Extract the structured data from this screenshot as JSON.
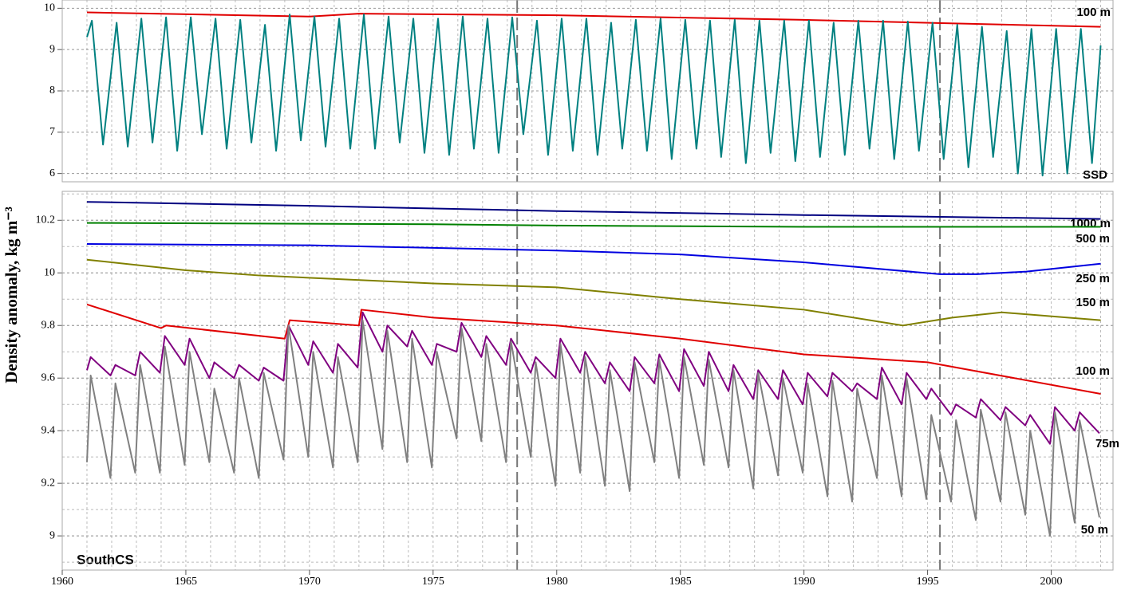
{
  "chart_data": [
    {
      "type": "line",
      "xlim": [
        1960,
        2002.5
      ],
      "ylim": [
        5.8,
        10.2
      ],
      "yticks": [
        6,
        7,
        8,
        9,
        10
      ],
      "xticks": [
        1960,
        1965,
        1970,
        1975,
        1980,
        1985,
        1990,
        1995,
        2000
      ],
      "xminor": [
        1960,
        1961,
        1962,
        1963,
        1964,
        1965,
        1966,
        1967,
        1968,
        1969,
        1970,
        1971,
        1972,
        1973,
        1974,
        1975,
        1976,
        1977,
        1978,
        1979,
        1980,
        1981,
        1982,
        1983,
        1984,
        1985,
        1986,
        1987,
        1988,
        1989,
        1990,
        1991,
        1992,
        1993,
        1994,
        1995,
        1996,
        1997,
        1998,
        1999,
        2000,
        2001,
        2002
      ],
      "vlines": [
        1978.4,
        1995.5
      ],
      "grid": true,
      "series": [
        {
          "name": "100 m",
          "color": "#e00000",
          "x": [
            1961,
            1970,
            1972,
            1980,
            1990,
            2002
          ],
          "values": [
            9.9,
            9.8,
            9.87,
            9.83,
            9.72,
            9.55
          ]
        },
        {
          "name": "SSD",
          "color": "#008080",
          "x": [
            1961,
            1961.2,
            1961.65,
            1962.2,
            1962.65,
            1963.2,
            1963.65,
            1964.2,
            1964.65,
            1965.2,
            1965.65,
            1966.2,
            1966.65,
            1967.2,
            1967.65,
            1968.2,
            1968.65,
            1969.2,
            1969.65,
            1970.2,
            1970.65,
            1971.2,
            1971.65,
            1972.2,
            1972.65,
            1973.2,
            1973.65,
            1974.2,
            1974.65,
            1975.2,
            1975.65,
            1976.2,
            1976.65,
            1977.2,
            1977.65,
            1978.2,
            1978.65,
            1979.2,
            1979.65,
            1980.2,
            1980.65,
            1981.2,
            1981.65,
            1982.2,
            1982.65,
            1983.2,
            1983.65,
            1984.2,
            1984.65,
            1985.2,
            1985.65,
            1986.2,
            1986.65,
            1987.2,
            1987.65,
            1988.2,
            1988.65,
            1989.2,
            1989.65,
            1990.2,
            1990.65,
            1991.2,
            1991.65,
            1992.2,
            1992.65,
            1993.2,
            1993.65,
            1994.2,
            1994.65,
            1995.2,
            1995.65,
            1996.2,
            1996.65,
            1997.2,
            1997.65,
            1998.2,
            1998.65,
            1999.2,
            1999.65,
            2000.2,
            2000.65,
            2001.2,
            2001.65,
            2002
          ],
          "values": [
            9.3,
            9.7,
            6.7,
            9.65,
            6.65,
            9.75,
            6.75,
            9.78,
            6.55,
            9.78,
            6.95,
            9.75,
            6.6,
            9.72,
            6.75,
            9.6,
            6.55,
            9.85,
            6.8,
            9.8,
            6.65,
            9.75,
            6.6,
            9.85,
            6.6,
            9.8,
            6.75,
            9.75,
            6.5,
            9.75,
            6.45,
            9.8,
            6.6,
            9.75,
            6.5,
            9.78,
            6.95,
            9.7,
            6.45,
            9.75,
            6.55,
            9.75,
            6.45,
            9.65,
            6.6,
            9.72,
            6.55,
            9.75,
            6.35,
            9.72,
            6.6,
            9.7,
            6.4,
            9.72,
            6.25,
            9.7,
            6.5,
            9.7,
            6.3,
            9.7,
            6.4,
            9.65,
            6.45,
            9.7,
            6.6,
            9.7,
            6.35,
            9.68,
            6.55,
            9.65,
            6.35,
            9.6,
            6.15,
            9.55,
            6.4,
            9.45,
            6.0,
            9.5,
            5.95,
            9.5,
            6.0,
            9.5,
            6.25,
            9.1
          ]
        }
      ]
    },
    {
      "type": "line",
      "xlim": [
        1960,
        2002.5
      ],
      "ylim": [
        8.87,
        10.31
      ],
      "yticks": [
        9,
        9.2,
        9.4,
        9.6,
        9.8,
        10,
        10.2
      ],
      "yminor": [
        8.9,
        9,
        9.1,
        9.2,
        9.3,
        9.4,
        9.5,
        9.6,
        9.7,
        9.8,
        9.9,
        10,
        10.1,
        10.2,
        10.3
      ],
      "xticks": [
        1960,
        1965,
        1970,
        1975,
        1980,
        1985,
        1990,
        1995,
        2000
      ],
      "xminor": [
        1960,
        1961,
        1962,
        1963,
        1964,
        1965,
        1966,
        1967,
        1968,
        1969,
        1970,
        1971,
        1972,
        1973,
        1974,
        1975,
        1976,
        1977,
        1978,
        1979,
        1980,
        1981,
        1982,
        1983,
        1984,
        1985,
        1986,
        1987,
        1988,
        1989,
        1990,
        1991,
        1992,
        1993,
        1994,
        1995,
        1996,
        1997,
        1998,
        1999,
        2000,
        2001,
        2002
      ],
      "vlines": [
        1978.4,
        1995.5
      ],
      "grid": true,
      "ylabel": "Density anomaly, kg m⁻³",
      "annotation": "SouthCS",
      "series": [
        {
          "name": "1000 m",
          "color": "#000080",
          "x": [
            1961,
            1970,
            1980,
            1990,
            2002
          ],
          "values": [
            10.27,
            10.255,
            10.235,
            10.22,
            10.205
          ]
        },
        {
          "name": "500 m",
          "color": "#008000",
          "x": [
            1961,
            1975,
            1980,
            1990,
            2002
          ],
          "values": [
            10.19,
            10.185,
            10.18,
            10.175,
            10.175
          ]
        },
        {
          "name": "250 m",
          "color": "#0000e0",
          "x": [
            1961,
            1970,
            1980,
            1985,
            1990,
            1995.5,
            1997,
            1999,
            2002
          ],
          "values": [
            10.11,
            10.105,
            10.085,
            10.07,
            10.04,
            9.995,
            9.995,
            10.005,
            10.035
          ]
        },
        {
          "name": "150 m",
          "color": "#808000",
          "x": [
            1961,
            1965,
            1968,
            1975,
            1980,
            1985,
            1990,
            1994,
            1996,
            1998,
            2002
          ],
          "values": [
            10.05,
            10.01,
            9.99,
            9.96,
            9.945,
            9.9,
            9.86,
            9.8,
            9.83,
            9.85,
            9.82
          ]
        },
        {
          "name": "100 m",
          "color": "#e00000",
          "x": [
            1961,
            1964,
            1964.2,
            1969,
            1969.2,
            1972,
            1972.1,
            1975,
            1980,
            1985,
            1990,
            1995,
            2002
          ],
          "values": [
            9.88,
            9.79,
            9.8,
            9.75,
            9.82,
            9.8,
            9.86,
            9.83,
            9.8,
            9.75,
            9.69,
            9.66,
            9.54
          ]
        },
        {
          "name": "75m",
          "color": "#800080",
          "x": [
            1961,
            1961.15,
            1961.95,
            1962.15,
            1962.95,
            1963.15,
            1963.95,
            1964.15,
            1964.95,
            1965.15,
            1965.95,
            1966.15,
            1966.95,
            1967.15,
            1967.95,
            1968.15,
            1968.95,
            1969.15,
            1969.95,
            1970.15,
            1970.95,
            1971.15,
            1971.95,
            1972.15,
            1972.95,
            1973.15,
            1973.95,
            1974.15,
            1974.95,
            1975.15,
            1975.95,
            1976.15,
            1976.95,
            1977.15,
            1977.95,
            1978.15,
            1978.95,
            1979.15,
            1979.95,
            1980.15,
            1980.95,
            1981.15,
            1981.95,
            1982.15,
            1982.95,
            1983.15,
            1983.95,
            1984.15,
            1984.95,
            1985.15,
            1985.95,
            1986.15,
            1986.95,
            1987.15,
            1987.95,
            1988.15,
            1988.95,
            1989.15,
            1989.95,
            1990.15,
            1990.95,
            1991.15,
            1991.95,
            1992.15,
            1992.95,
            1993.15,
            1993.95,
            1994.15,
            1994.95,
            1995.15,
            1995.95,
            1996.15,
            1996.95,
            1997.15,
            1997.95,
            1998.15,
            1998.95,
            1999.15,
            1999.95,
            2000.15,
            2000.95,
            2001.15,
            2001.95
          ],
          "values": [
            9.63,
            9.68,
            9.61,
            9.65,
            9.61,
            9.7,
            9.62,
            9.76,
            9.65,
            9.75,
            9.6,
            9.66,
            9.6,
            9.65,
            9.59,
            9.64,
            9.59,
            9.8,
            9.65,
            9.74,
            9.62,
            9.73,
            9.64,
            9.85,
            9.7,
            9.8,
            9.72,
            9.78,
            9.65,
            9.73,
            9.7,
            9.81,
            9.68,
            9.76,
            9.65,
            9.75,
            9.62,
            9.68,
            9.6,
            9.75,
            9.62,
            9.7,
            9.58,
            9.66,
            9.55,
            9.68,
            9.58,
            9.69,
            9.55,
            9.71,
            9.57,
            9.7,
            9.55,
            9.65,
            9.52,
            9.63,
            9.52,
            9.63,
            9.5,
            9.62,
            9.53,
            9.62,
            9.55,
            9.58,
            9.52,
            9.64,
            9.5,
            9.62,
            9.52,
            9.56,
            9.46,
            9.5,
            9.45,
            9.52,
            9.44,
            9.49,
            9.42,
            9.46,
            9.35,
            9.49,
            9.4,
            9.47,
            9.39
          ]
        },
        {
          "name": "50 m",
          "color": "#808080",
          "x": [
            1961,
            1961.15,
            1961.95,
            1962.15,
            1962.95,
            1963.15,
            1963.95,
            1964.15,
            1964.95,
            1965.15,
            1965.95,
            1966.15,
            1966.95,
            1967.15,
            1967.95,
            1968.15,
            1968.95,
            1969.15,
            1969.95,
            1970.15,
            1970.95,
            1971.15,
            1971.95,
            1972.15,
            1972.95,
            1973.15,
            1973.95,
            1974.15,
            1974.95,
            1975.15,
            1975.95,
            1976.15,
            1976.95,
            1977.15,
            1977.95,
            1978.15,
            1978.95,
            1979.15,
            1979.95,
            1980.15,
            1980.95,
            1981.15,
            1981.95,
            1982.15,
            1982.95,
            1983.15,
            1983.95,
            1984.15,
            1984.95,
            1985.15,
            1985.95,
            1986.15,
            1986.95,
            1987.15,
            1987.95,
            1988.15,
            1988.95,
            1989.15,
            1989.95,
            1990.15,
            1990.95,
            1991.15,
            1991.95,
            1992.15,
            1992.95,
            1993.15,
            1993.95,
            1994.15,
            1994.95,
            1995.15,
            1995.95,
            1996.15,
            1996.95,
            1997.15,
            1997.95,
            1998.15,
            1998.95,
            1999.15,
            1999.95,
            2000.15,
            2000.95,
            2001.15,
            2001.95
          ],
          "values": [
            9.28,
            9.61,
            9.22,
            9.58,
            9.24,
            9.65,
            9.24,
            9.72,
            9.27,
            9.7,
            9.28,
            9.56,
            9.24,
            9.6,
            9.22,
            9.62,
            9.29,
            9.8,
            9.3,
            9.7,
            9.26,
            9.68,
            9.28,
            9.82,
            9.33,
            9.78,
            9.28,
            9.75,
            9.26,
            9.7,
            9.37,
            9.79,
            9.36,
            9.73,
            9.28,
            9.74,
            9.3,
            9.66,
            9.19,
            9.73,
            9.24,
            9.68,
            9.19,
            9.63,
            9.17,
            9.66,
            9.28,
            9.67,
            9.22,
            9.68,
            9.27,
            9.67,
            9.26,
            9.63,
            9.18,
            9.62,
            9.23,
            9.6,
            9.24,
            9.58,
            9.15,
            9.59,
            9.13,
            9.56,
            9.22,
            9.61,
            9.15,
            9.6,
            9.14,
            9.46,
            9.13,
            9.44,
            9.06,
            9.48,
            9.13,
            9.47,
            9.08,
            9.4,
            9.0,
            9.47,
            9.05,
            9.44,
            9.07
          ]
        }
      ]
    }
  ]
}
